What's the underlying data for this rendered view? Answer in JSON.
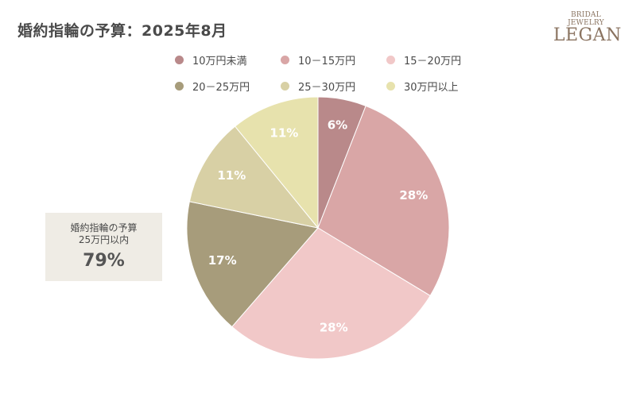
{
  "chart_data": {
    "type": "pie",
    "title": "婚約指輪の予算：2025年8月",
    "legend_position": "top",
    "slices": [
      {
        "label": "10万円未満",
        "value": 6,
        "display": "6%",
        "color": "#b9898a"
      },
      {
        "label": "10－15万円",
        "value": 28,
        "display": "28%",
        "color": "#d9a6a6"
      },
      {
        "label": "15－20万円",
        "value": 28,
        "display": "28%",
        "color": "#f1c8c8"
      },
      {
        "label": "20－25万円",
        "value": 17,
        "display": "17%",
        "color": "#a79c7b"
      },
      {
        "label": "25－30万円",
        "value": 11,
        "display": "11%",
        "color": "#d8d0a5"
      },
      {
        "label": "30万円以上",
        "value": 11,
        "display": "11%",
        "color": "#e7e2ad"
      }
    ]
  },
  "brand": {
    "sub": "BRIDAL JEWELRY",
    "main": "LEGAN"
  },
  "callout": {
    "line1": "婚約指輪の予算",
    "line2": "25万円以内",
    "value": "79%"
  }
}
